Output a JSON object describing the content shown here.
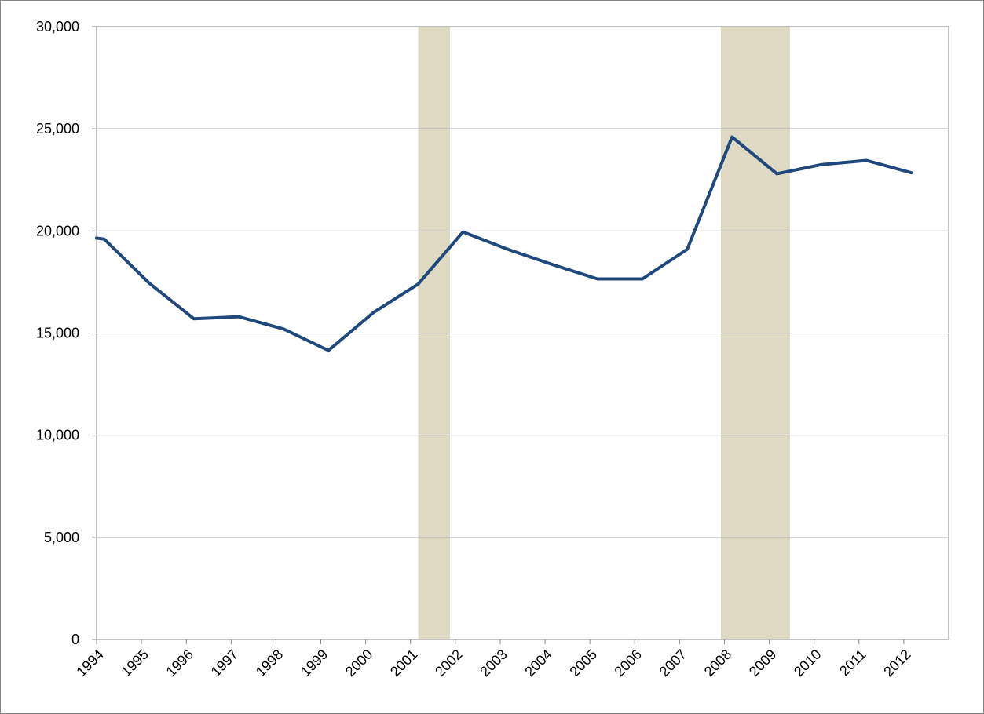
{
  "chart_data": {
    "type": "line",
    "x": [
      1994,
      1994.17,
      1995.17,
      1996.17,
      1997.17,
      1998.17,
      1999.17,
      2000.17,
      2001.17,
      2002.17,
      2003.17,
      2004.17,
      2005.17,
      2006.17,
      2007.17,
      2008.17,
      2009.17,
      2010.17,
      2011.17,
      2012.17
    ],
    "series": [
      {
        "color": "#1f497d",
        "values": [
          19650,
          19600,
          17450,
          15700,
          15800,
          15200,
          14150,
          16000,
          17400,
          19950,
          19100,
          18350,
          17650,
          17650,
          19100,
          24600,
          22800,
          23250,
          23450,
          22850
        ]
      }
    ],
    "xlim": [
      1994,
      2013
    ],
    "xticks": [
      1994,
      1995,
      1996,
      1997,
      1998,
      1999,
      2000,
      2001,
      2002,
      2003,
      2004,
      2005,
      2006,
      2007,
      2008,
      2009,
      2010,
      2011,
      2012
    ],
    "ylim": [
      0,
      30000
    ],
    "yticks": [
      0,
      {
        "value": 5000,
        "label": "5,000"
      },
      {
        "value": 10000,
        "label": "10,000"
      },
      {
        "value": 15000,
        "label": "15,000"
      },
      {
        "value": 20000,
        "label": "20,000"
      },
      {
        "value": 25000,
        "label": "25,000"
      },
      {
        "value": 30000,
        "label": "30,000"
      }
    ],
    "grid": true,
    "shaded_ranges": [
      [
        2001.17,
        2001.88
      ],
      [
        2007.92,
        2009.46
      ]
    ],
    "shade_color": "#ddd9c3"
  }
}
